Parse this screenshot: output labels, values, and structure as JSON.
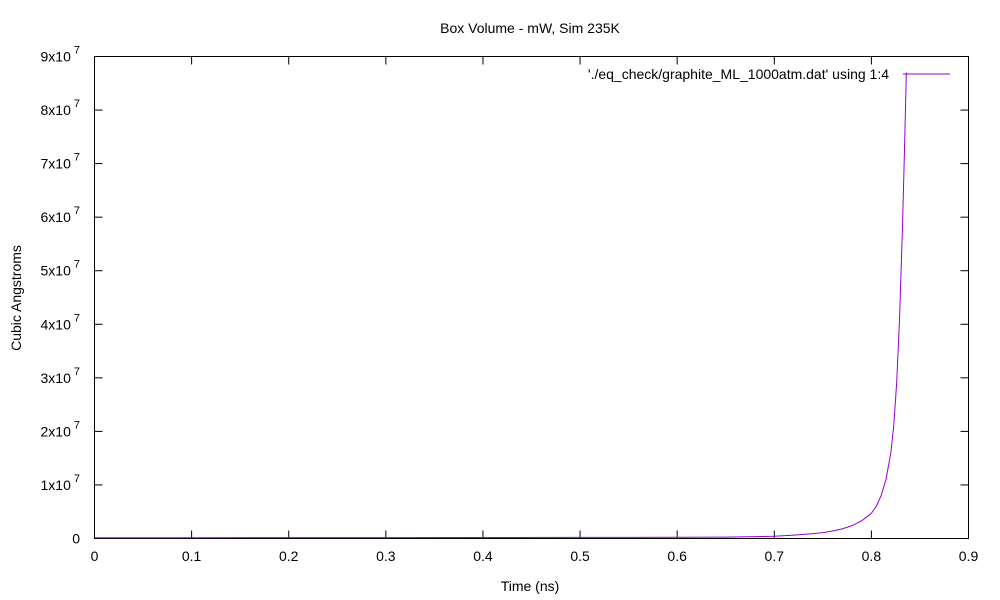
{
  "chart_data": {
    "type": "line",
    "title": "Box Volume - mW, Sim 235K",
    "xlabel": "Time (ns)",
    "ylabel": "Cubic Angstroms",
    "xlim": [
      0,
      0.9
    ],
    "ylim": [
      0,
      90000000
    ],
    "grid": false,
    "legend_position": "top-right",
    "x_ticks": [
      {
        "value": 0,
        "label": "0"
      },
      {
        "value": 0.1,
        "label": "0.1"
      },
      {
        "value": 0.2,
        "label": "0.2"
      },
      {
        "value": 0.3,
        "label": "0.3"
      },
      {
        "value": 0.4,
        "label": "0.4"
      },
      {
        "value": 0.5,
        "label": "0.5"
      },
      {
        "value": 0.6,
        "label": "0.6"
      },
      {
        "value": 0.7,
        "label": "0.7"
      },
      {
        "value": 0.8,
        "label": "0.8"
      },
      {
        "value": 0.9,
        "label": "0.9"
      }
    ],
    "y_ticks": [
      {
        "value": 0,
        "mantissa": "0",
        "exp": ""
      },
      {
        "value": 10000000,
        "mantissa": "1x10",
        "exp": "7"
      },
      {
        "value": 20000000,
        "mantissa": "2x10",
        "exp": "7"
      },
      {
        "value": 30000000,
        "mantissa": "3x10",
        "exp": "7"
      },
      {
        "value": 40000000,
        "mantissa": "4x10",
        "exp": "7"
      },
      {
        "value": 50000000,
        "mantissa": "5x10",
        "exp": "7"
      },
      {
        "value": 60000000,
        "mantissa": "6x10",
        "exp": "7"
      },
      {
        "value": 70000000,
        "mantissa": "7x10",
        "exp": "7"
      },
      {
        "value": 80000000,
        "mantissa": "8x10",
        "exp": "7"
      },
      {
        "value": 90000000,
        "mantissa": "9x10",
        "exp": "7"
      }
    ],
    "series": [
      {
        "name": "'./eq_check/graphite_ML_1000atm.dat' using 1:4",
        "color": "#9400d3",
        "x": [
          0,
          0.1,
          0.2,
          0.3,
          0.4,
          0.5,
          0.6,
          0.65,
          0.7,
          0.72,
          0.74,
          0.75,
          0.76,
          0.77,
          0.78,
          0.79,
          0.8,
          0.805,
          0.81,
          0.815,
          0.82,
          0.823,
          0.826,
          0.829,
          0.832,
          0.834,
          0.836
        ],
        "y": [
          150000,
          150000,
          160000,
          170000,
          180000,
          200000,
          230000,
          260000,
          420000,
          620000,
          900000,
          1100000,
          1400000,
          1800000,
          2400000,
          3300000,
          4700000,
          6000000,
          8000000,
          11000000,
          16000000,
          21000000,
          29000000,
          41000000,
          58000000,
          72000000,
          87000000
        ]
      }
    ]
  }
}
